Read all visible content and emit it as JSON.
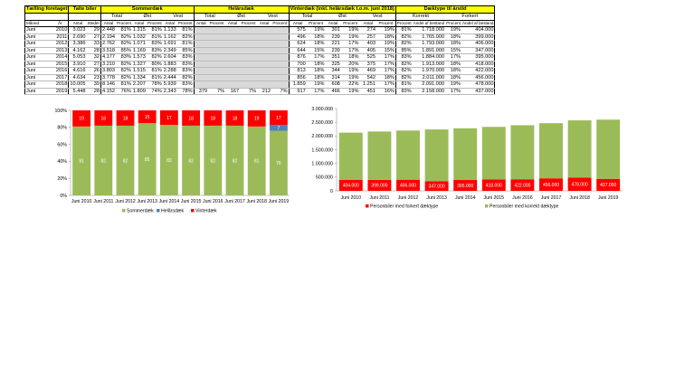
{
  "table": {
    "headers": {
      "taelling": "Tælling foretaget",
      "talte": "Talte biler",
      "sommer": "Sommerdæk",
      "helaar": "Helårsdæk",
      "vinter": "Vinterdæk (inkl. helårsdæk t.o.m. juni 2018)",
      "daektype": "Dæktype til årstid"
    },
    "groups": {
      "total": "Total",
      "ost": "Øst",
      "vest": "Vest",
      "korrekt": "Korrekt",
      "forkert": "Forkert"
    },
    "sub": {
      "maaned": "Måned",
      "aar": "År",
      "antal": "Antal",
      "steder": "Steder",
      "procent": "Procent",
      "andel": "Andel af bestand"
    },
    "rows": [
      [
        "Juni",
        "2010",
        "3.023",
        "29",
        "2.448",
        "81%",
        "1.315",
        "81%",
        "1.133",
        "81%",
        "",
        "",
        "",
        "",
        "",
        "",
        "575",
        "19%",
        "301",
        "19%",
        "274",
        "19%",
        "81%",
        "1.718.000",
        "19%",
        "404.000"
      ],
      [
        "Juni",
        "2011",
        "2.690",
        "27",
        "2.194",
        "82%",
        "1.032",
        "81%",
        "1.162",
        "82%",
        "",
        "",
        "",
        "",
        "",
        "",
        "496",
        "18%",
        "239",
        "19%",
        "257",
        "18%",
        "82%",
        "1.765.000",
        "18%",
        "399.000"
      ],
      [
        "Juni",
        "2012",
        "3.386",
        "33",
        "2.762",
        "82%",
        "1.071",
        "83%",
        "1.691",
        "81%",
        "",
        "",
        "",
        "",
        "",
        "",
        "624",
        "18%",
        "221",
        "17%",
        "403",
        "19%",
        "82%",
        "1.793.000",
        "18%",
        "406.000"
      ],
      [
        "Juni",
        "2013",
        "4.162",
        "28",
        "3.518",
        "85%",
        "1.169",
        "83%",
        "2.349",
        "85%",
        "",
        "",
        "",
        "",
        "",
        "",
        "644",
        "15%",
        "239",
        "17%",
        "405",
        "15%",
        "85%",
        "1.891.000",
        "15%",
        "347.000"
      ],
      [
        "Juni",
        "2014",
        "5.053",
        "32",
        "4.177",
        "83%",
        "1.573",
        "82%",
        "2.604",
        "83%",
        "",
        "",
        "",
        "",
        "",
        "",
        "876",
        "17%",
        "351",
        "18%",
        "525",
        "17%",
        "83%",
        "1.884.000",
        "17%",
        "395.000"
      ],
      [
        "Juni",
        "2015",
        "3.910",
        "27",
        "3.210",
        "82%",
        "1.327",
        "80%",
        "1.883",
        "83%",
        "",
        "",
        "",
        "",
        "",
        "",
        "700",
        "18%",
        "325",
        "20%",
        "375",
        "17%",
        "82%",
        "1.913.000",
        "18%",
        "418.000"
      ],
      [
        "Juni",
        "2016",
        "4.616",
        "26",
        "3.803",
        "82%",
        "1.515",
        "81%",
        "2.288",
        "83%",
        "",
        "",
        "",
        "",
        "",
        "",
        "813",
        "18%",
        "344",
        "19%",
        "469",
        "17%",
        "82%",
        "1.970.000",
        "18%",
        "422.000"
      ],
      [
        "Juni",
        "2017",
        "4.634",
        "23",
        "3.778",
        "82%",
        "1.334",
        "81%",
        "2.444",
        "82%",
        "",
        "",
        "",
        "",
        "",
        "",
        "856",
        "18%",
        "314",
        "19%",
        "542",
        "18%",
        "82%",
        "2.011.000",
        "18%",
        "456.000"
      ],
      [
        "Juni",
        "2018",
        "10.005",
        "39",
        "8.146",
        "81%",
        "2.207",
        "78%",
        "5.939",
        "83%",
        "",
        "",
        "",
        "",
        "",
        "",
        "1.859",
        "19%",
        "608",
        "22%",
        "1.251",
        "17%",
        "81%",
        "2.091.000",
        "19%",
        "478.000"
      ],
      [
        "Juni",
        "2019",
        "5.448",
        "28",
        "4.152",
        "76%",
        "1.809",
        "74%",
        "2.343",
        "78%",
        "379",
        "7%",
        "167",
        "7%",
        "212",
        "7%",
        "917",
        "17%",
        "466",
        "19%",
        "451",
        "16%",
        "83%",
        "2.158.000",
        "17%",
        "437.000"
      ]
    ]
  },
  "chart_data": [
    {
      "type": "bar",
      "stacked": true,
      "categories": [
        "Juni 2010",
        "Juni 2011",
        "Juni 2012",
        "Juni 2013",
        "Juni 2014",
        "Juni 2015",
        "Juni 2016",
        "Juni 2017",
        "Juni 2018",
        "Juni 2019"
      ],
      "series": [
        {
          "name": "Sommerdæk",
          "values": [
            81,
            82,
            82,
            85,
            83,
            82,
            82,
            82,
            81,
            76
          ],
          "color": "#9bbb59"
        },
        {
          "name": "Helårsdæk",
          "values": [
            0,
            0,
            0,
            0,
            0,
            0,
            0,
            0,
            0,
            7
          ],
          "color": "#4f81bd"
        },
        {
          "name": "Vinterdæk",
          "values": [
            19,
            18,
            18,
            15,
            17,
            18,
            18,
            18,
            19,
            17
          ],
          "color": "#ff0000"
        }
      ],
      "yticks": [
        "0%",
        "20%",
        "40%",
        "60%",
        "80%",
        "100%"
      ],
      "ylim": [
        0,
        100
      ],
      "legend": "bottom"
    },
    {
      "type": "bar",
      "stacked": true,
      "categories": [
        "Juni 2010",
        "Juni 2011",
        "Juni 2012",
        "Juni 2013",
        "Juni 2014",
        "Juni 2015",
        "Juni 2016",
        "Juni 2017",
        "Juni 2018",
        "Juni 2019"
      ],
      "series": [
        {
          "name": "Personbiler med forkert dæktype",
          "values": [
            404000,
            399000,
            406000,
            347000,
            395000,
            418000,
            422000,
            456000,
            478000,
            437000
          ],
          "labels": [
            "404.000",
            "399.000",
            "406.000",
            "347.000",
            "395.000",
            "418.000",
            "422.000",
            "456.000",
            "478.000",
            "437.000"
          ],
          "color": "#ff0000"
        },
        {
          "name": "Personbiler med korrekt dæktype",
          "values": [
            1718000,
            1765000,
            1793000,
            1891000,
            1884000,
            1913000,
            1970000,
            2011000,
            2091000,
            2158000
          ],
          "color": "#9bbb59"
        }
      ],
      "yticks": [
        "0",
        "500.000",
        "1.000.000",
        "1.500.000",
        "2.000.000",
        "2.500.000",
        "3.000.000"
      ],
      "ylim": [
        0,
        3000000
      ],
      "legend": "bottom"
    }
  ]
}
